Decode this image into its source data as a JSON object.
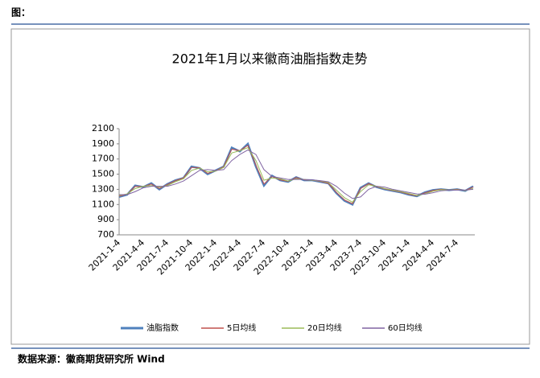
{
  "header": "图：",
  "footer": "数据来源：徽商期货研究所   Wind",
  "chart_data": {
    "type": "line",
    "title": "2021年1月以来徽商油脂指数走势",
    "categories": [
      "2021-1-4",
      null,
      null,
      "2021-4-4",
      null,
      null,
      "2021-7-4",
      null,
      null,
      "2021-10-4",
      null,
      null,
      "2022-1-4",
      null,
      null,
      "2022-4-4",
      null,
      null,
      "2022-7-4",
      null,
      null,
      "2022-10-4",
      null,
      null,
      "2023-1-4",
      null,
      null,
      "2023-4-4",
      null,
      null,
      "2023-7-4",
      null,
      null,
      "2023-10-4",
      null,
      null,
      "2024-1-4",
      null,
      null,
      "2024-4-4",
      null,
      null,
      "2024-7-4",
      null,
      null
    ],
    "series": [
      {
        "name": "油脂指数",
        "color": "#4f81bd",
        "values": [
          1200,
          1230,
          1350,
          1330,
          1380,
          1300,
          1370,
          1420,
          1450,
          1600,
          1580,
          1500,
          1550,
          1600,
          1850,
          1800,
          1900,
          1600,
          1350,
          1480,
          1420,
          1400,
          1460,
          1420,
          1420,
          1400,
          1380,
          1250,
          1150,
          1100,
          1320,
          1380,
          1330,
          1300,
          1280,
          1260,
          1230,
          1210,
          1260,
          1290,
          1300,
          1290,
          1300,
          1280,
          1340
        ]
      },
      {
        "name": "5日均线",
        "color": "#c0504d",
        "values": [
          1210,
          1235,
          1340,
          1335,
          1370,
          1310,
          1365,
          1415,
          1450,
          1590,
          1585,
          1510,
          1545,
          1600,
          1830,
          1810,
          1880,
          1620,
          1370,
          1470,
          1425,
          1405,
          1455,
          1425,
          1420,
          1405,
          1380,
          1260,
          1160,
          1110,
          1310,
          1375,
          1335,
          1305,
          1285,
          1265,
          1235,
          1215,
          1255,
          1285,
          1300,
          1290,
          1300,
          1285,
          1330
        ]
      },
      {
        "name": "20日均线",
        "color": "#9bbb59",
        "values": [
          1220,
          1240,
          1310,
          1340,
          1350,
          1330,
          1350,
          1400,
          1440,
          1550,
          1580,
          1530,
          1540,
          1590,
          1780,
          1810,
          1850,
          1680,
          1420,
          1450,
          1440,
          1410,
          1440,
          1430,
          1420,
          1410,
          1390,
          1290,
          1190,
          1130,
          1270,
          1360,
          1340,
          1310,
          1290,
          1270,
          1245,
          1220,
          1240,
          1275,
          1295,
          1290,
          1295,
          1285,
          1310
        ]
      },
      {
        "name": "60日均线",
        "color": "#8064a2",
        "values": [
          1230,
          1230,
          1270,
          1320,
          1340,
          1340,
          1340,
          1370,
          1410,
          1480,
          1550,
          1560,
          1550,
          1560,
          1680,
          1760,
          1820,
          1760,
          1560,
          1470,
          1450,
          1430,
          1430,
          1430,
          1425,
          1415,
          1400,
          1340,
          1250,
          1180,
          1200,
          1300,
          1340,
          1330,
          1300,
          1280,
          1260,
          1240,
          1235,
          1255,
          1280,
          1290,
          1290,
          1290,
          1300
        ]
      }
    ],
    "ylim": [
      700,
      2100
    ],
    "yticks": [
      700,
      900,
      1100,
      1300,
      1500,
      1700,
      1900,
      2100
    ],
    "grid": false,
    "legend": "bottom"
  }
}
